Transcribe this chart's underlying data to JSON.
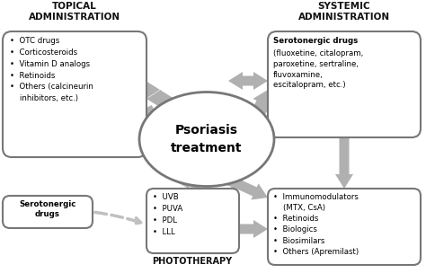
{
  "title_left": "TOPICAL\nADMINISTRATION",
  "title_right": "SYSTEMIC\nADMINISTRATION",
  "title_bottom": "PHOTOTHERAPY",
  "center_text": "Psoriasis\ntreatment",
  "box_topical": "•  OTC drugs\n•  Corticosteroids\n•  Vitamin D analogs\n•  Retinoids\n•  Others (calcineurin\n    inhibitors, etc.)",
  "box_serotonergic_top_title": "Serotonergic drugs",
  "box_serotonergic_top_body": "(fluoxetine, citalopram,\nparoxetine, sertraline,\nfluvoxamine,\nescitalopram, etc.)",
  "box_phototherapy": "•  UVB\n•  PUVA\n•  PDL\n•  LLL",
  "box_systemic": "•  Immunomodulators\n    (MTX, CsA)\n•  Retinoids\n•  Biologics\n•  Biosimilars\n•  Others (Apremilast)",
  "box_serotonergic_left": "Serotonergic\ndrugs",
  "bg_color": "#ffffff",
  "arrow_color": "#b0b0b0",
  "text_color": "#000000",
  "header_color": "#111111"
}
